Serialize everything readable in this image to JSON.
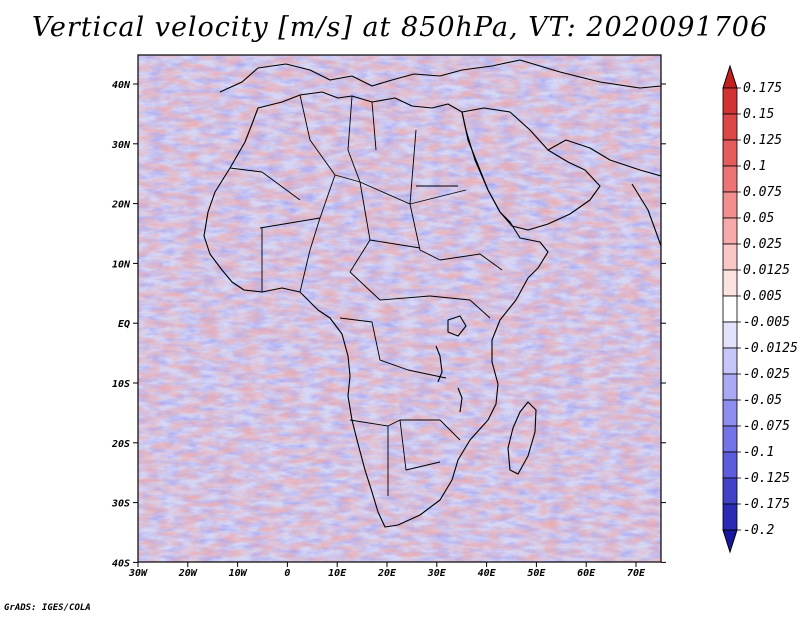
{
  "title": "Vertical velocity [m/s] at 850hPa, VT: 2020091706",
  "credit": "GrADS: IGES/COLA",
  "lat_labels": [
    "40N",
    "30N",
    "20N",
    "10N",
    "EQ",
    "10S",
    "20S",
    "30S",
    "40S"
  ],
  "lon_labels": [
    "30W",
    "20W",
    "10W",
    "0",
    "10E",
    "20E",
    "30E",
    "40E",
    "50E",
    "60E",
    "70E"
  ],
  "colorbar": {
    "labels": [
      "0.175",
      "0.15",
      "0.125",
      "0.1",
      "0.075",
      "0.05",
      "0.025",
      "0.0125",
      "0.005",
      "-0.005",
      "-0.0125",
      "-0.025",
      "-0.05",
      "-0.075",
      "-0.1",
      "-0.125",
      "-0.175",
      "-0.2"
    ],
    "colors": [
      "#c41e1e",
      "#d23232",
      "#dc4646",
      "#e45c5c",
      "#ec7474",
      "#f28e8e",
      "#f6aaaa",
      "#fac6c6",
      "#fde2e2",
      "#ffffff",
      "#e2e2fc",
      "#c6c6f8",
      "#aaaaf4",
      "#8e8ef0",
      "#7474e8",
      "#5c5cdc",
      "#4242c8",
      "#2a2ab4",
      "#18189c"
    ]
  },
  "map": {
    "lat_range": [
      -40,
      45
    ],
    "lon_range": [
      -30,
      76
    ],
    "field_colors": {
      "positive": "#f08a8a",
      "negative": "#8c8cf0",
      "neutral": "#ffffff"
    }
  }
}
